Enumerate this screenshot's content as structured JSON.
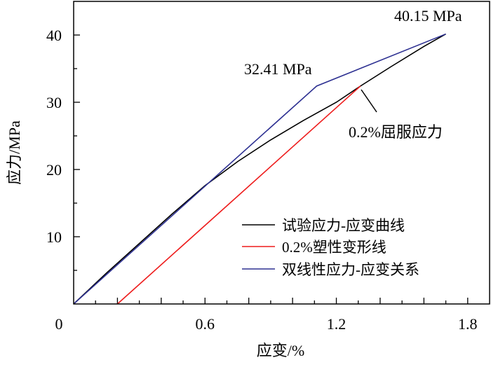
{
  "chart_data": {
    "type": "line",
    "xlabel": "应变/%",
    "ylabel": "应力/MPa",
    "xlim": [
      0,
      1.9
    ],
    "ylim": [
      0,
      45
    ],
    "xticks": [
      0,
      0.6,
      1.2,
      1.8
    ],
    "xtick_labels": [
      "0",
      "0.6",
      "1.2",
      "1.8"
    ],
    "yticks": [
      10,
      20,
      30,
      40
    ],
    "ytick_labels": [
      "10",
      "20",
      "30",
      "40"
    ],
    "grid": false,
    "legend_position": "bottom-right",
    "series": [
      {
        "name": "试验应力-应变曲线",
        "color": "#000000",
        "x": [
          0,
          0.15,
          0.3,
          0.45,
          0.6,
          0.75,
          0.9,
          1.05,
          1.2,
          1.31,
          1.45,
          1.6,
          1.7
        ],
        "y": [
          0,
          4.6,
          9.0,
          13.4,
          17.6,
          21.2,
          24.4,
          27.3,
          30.0,
          32.41,
          35.3,
          38.3,
          40.15
        ]
      },
      {
        "name": "0.2%塑性变形线",
        "color": "#ee1c1c",
        "x": [
          0.2,
          1.31
        ],
        "y": [
          0,
          32.41
        ]
      },
      {
        "name": "双线性应力-应变关系",
        "color": "#2e3192",
        "x": [
          0,
          1.11,
          1.7
        ],
        "y": [
          0,
          32.41,
          40.15
        ]
      }
    ],
    "annotations": [
      {
        "text": "40.15 MPa",
        "x": 1.7,
        "y": 40.15
      },
      {
        "text": "32.41 MPa",
        "x": 1.11,
        "y": 32.41
      },
      {
        "text": "0.2%屈服应力",
        "x": 1.31,
        "y": 32.41
      }
    ]
  }
}
